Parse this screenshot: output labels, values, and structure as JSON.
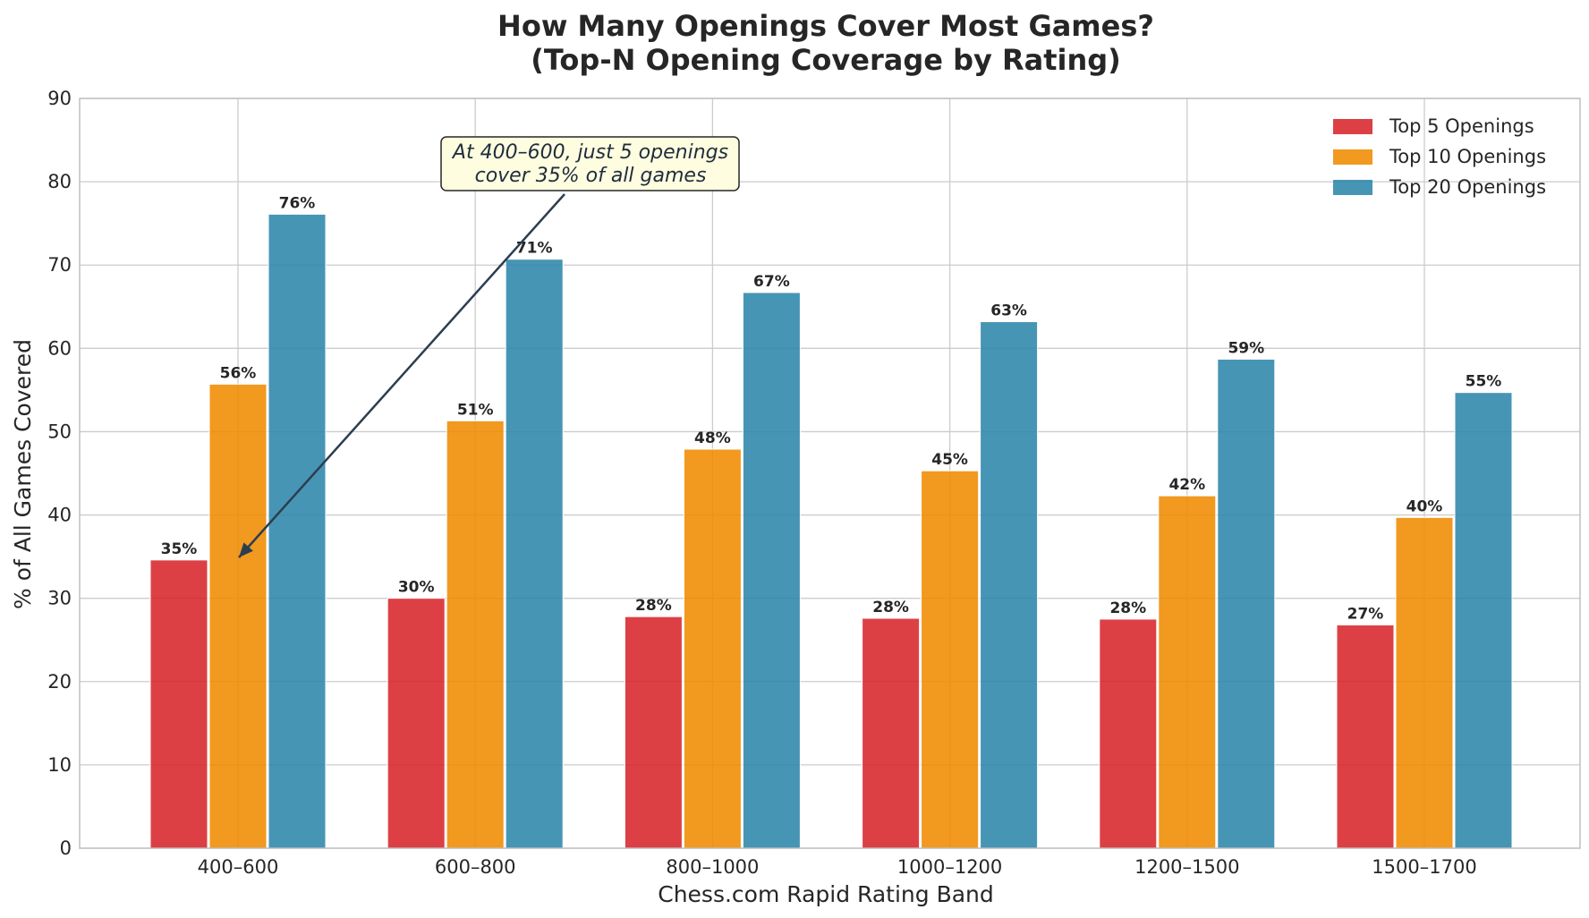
{
  "chart_data": {
    "type": "bar",
    "title_line1": "How Many Openings Cover Most Games?",
    "title_line2": "(Top-N Opening Coverage by Rating)",
    "xlabel": "Chess.com Rapid Rating Band",
    "ylabel": "% of All Games Covered",
    "categories": [
      "400–600",
      "600–800",
      "800–1000",
      "1000–1200",
      "1200–1500",
      "1500–1700"
    ],
    "ylim": [
      0,
      90
    ],
    "yticks": [
      0,
      10,
      20,
      30,
      40,
      50,
      60,
      70,
      80,
      90
    ],
    "grid": true,
    "legend_position": "top-right",
    "series": [
      {
        "name": "Top 5 Openings",
        "color": "#d7262b",
        "values": [
          34.6,
          30.0,
          27.8,
          27.6,
          27.5,
          26.8
        ],
        "labels": [
          "35%",
          "30%",
          "28%",
          "28%",
          "28%",
          "27%"
        ]
      },
      {
        "name": "Top 10 Openings",
        "color": "#f08b00",
        "values": [
          55.7,
          51.3,
          47.9,
          45.3,
          42.3,
          39.7
        ],
        "labels": [
          "56%",
          "51%",
          "48%",
          "45%",
          "42%",
          "40%"
        ]
      },
      {
        "name": "Top 20 Openings",
        "color": "#2e86ab",
        "values": [
          76.1,
          70.7,
          66.7,
          63.2,
          58.7,
          54.7
        ],
        "labels": [
          "76%",
          "71%",
          "67%",
          "63%",
          "59%",
          "55%"
        ]
      }
    ],
    "annotation": {
      "line1": "At 400–600, just 5 openings",
      "line2": "cover 35% of all games",
      "target_category": "400–600",
      "target_value": 35,
      "box_color": "#fffde0",
      "arrow_color": "#2c3e50"
    }
  }
}
